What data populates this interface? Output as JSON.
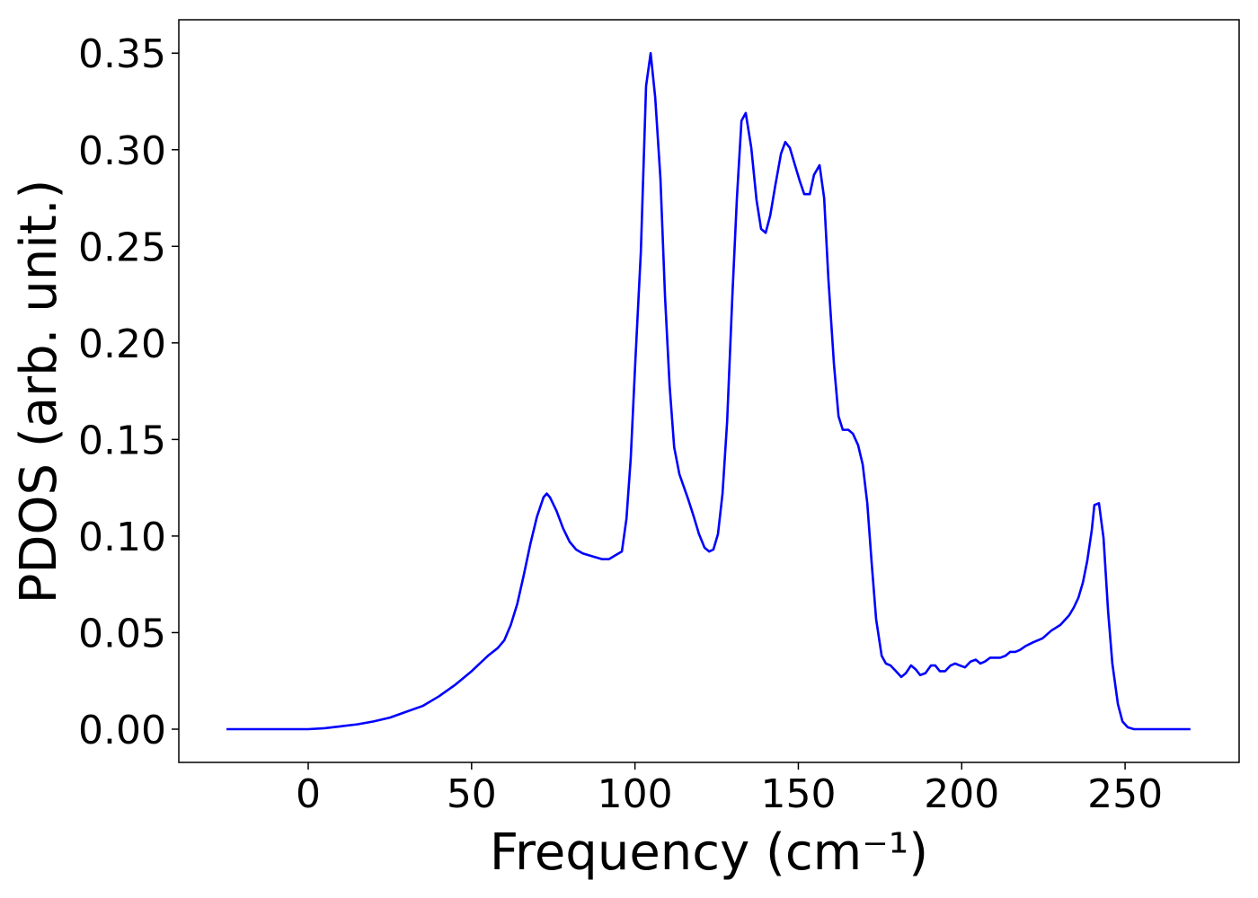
{
  "chart_data": {
    "type": "line",
    "x_label": "Frequency (cm⁻¹)",
    "y_label": "PDOS (arb. unit.)",
    "xlim": [
      -39.6,
      284.9
    ],
    "ylim": [
      -0.0172,
      0.3673
    ],
    "xticks": [
      0,
      50,
      100,
      150,
      200,
      250
    ],
    "yticks": [
      {
        "value": 0,
        "label": "0.00"
      },
      {
        "value": 0.05,
        "label": "0.05"
      },
      {
        "value": 0.1,
        "label": "0.10"
      },
      {
        "value": 0.15,
        "label": "0.15"
      },
      {
        "value": 0.2,
        "label": "0.20"
      },
      {
        "value": 0.25,
        "label": "0.25"
      },
      {
        "value": 0.3,
        "label": "0.30"
      },
      {
        "value": 0.35,
        "label": "0.35"
      }
    ],
    "grid": false,
    "series": [
      {
        "color": "#0000ff",
        "x": [
          -25,
          0,
          5,
          10,
          15,
          20,
          25,
          30,
          35,
          40,
          45,
          50,
          55,
          58,
          60,
          62,
          64,
          66,
          68,
          70,
          72,
          73,
          74,
          76,
          78,
          80,
          82,
          84,
          88,
          90,
          92,
          94,
          96,
          97.4,
          98.7,
          100.1,
          101.8,
          103.4,
          104.8,
          106.2,
          107.8,
          109.2,
          110.6,
          112,
          113.6,
          116.3,
          118,
          119.6,
          121.3,
          122.7,
          124,
          125.4,
          126.8,
          128.2,
          129.8,
          131.2,
          132.6,
          133.9,
          135.6,
          137.2,
          138.6,
          140,
          141.4,
          143,
          144.7,
          146,
          147.4,
          148.8,
          150.4,
          151.8,
          153.5,
          154.8,
          156.5,
          157.9,
          159.2,
          160.9,
          162.3,
          163.6,
          165.3,
          166.7,
          168.3,
          169.7,
          171.1,
          172.4,
          173.8,
          175.5,
          176.8,
          178.2,
          179.9,
          181.5,
          182.9,
          184.5,
          185.9,
          187.3,
          188.9,
          190.6,
          191.9,
          193.3,
          194.9,
          196.6,
          198,
          199.4,
          201,
          202.7,
          204.3,
          205.7,
          207.1,
          208.7,
          210.4,
          211.8,
          213.4,
          214.8,
          216.4,
          217.8,
          219.5,
          221.9,
          224.7,
          227.4,
          230.2,
          232.9,
          234.3,
          235.7,
          237.1,
          238.4,
          239.8,
          240.6,
          242,
          243.4,
          244.8,
          246.1,
          247.8,
          249.2,
          250.8,
          252.7,
          270
        ],
        "values": [
          0,
          0,
          0.0005,
          0.0015,
          0.0025,
          0.004,
          0.006,
          0.009,
          0.012,
          0.017,
          0.023,
          0.03,
          0.038,
          0.042,
          0.046,
          0.054,
          0.065,
          0.08,
          0.096,
          0.11,
          0.12,
          0.122,
          0.12,
          0.113,
          0.104,
          0.097,
          0.093,
          0.091,
          0.089,
          0.088,
          0.088,
          0.09,
          0.092,
          0.109,
          0.14,
          0.19,
          0.247,
          0.333,
          0.35,
          0.327,
          0.285,
          0.224,
          0.178,
          0.146,
          0.132,
          0.119,
          0.11,
          0.101,
          0.094,
          0.092,
          0.093,
          0.101,
          0.122,
          0.159,
          0.224,
          0.275,
          0.315,
          0.319,
          0.301,
          0.274,
          0.259,
          0.257,
          0.266,
          0.282,
          0.298,
          0.304,
          0.301,
          0.293,
          0.284,
          0.277,
          0.277,
          0.287,
          0.292,
          0.275,
          0.233,
          0.189,
          0.162,
          0.155,
          0.155,
          0.153,
          0.147,
          0.137,
          0.117,
          0.087,
          0.057,
          0.038,
          0.034,
          0.033,
          0.03,
          0.027,
          0.029,
          0.033,
          0.031,
          0.028,
          0.029,
          0.033,
          0.033,
          0.03,
          0.03,
          0.033,
          0.034,
          0.033,
          0.032,
          0.035,
          0.036,
          0.034,
          0.035,
          0.037,
          0.037,
          0.037,
          0.038,
          0.04,
          0.04,
          0.041,
          0.043,
          0.045,
          0.047,
          0.051,
          0.054,
          0.059,
          0.063,
          0.068,
          0.076,
          0.087,
          0.103,
          0.116,
          0.117,
          0.099,
          0.061,
          0.034,
          0.013,
          0.004,
          0.001,
          0,
          0
        ]
      }
    ]
  }
}
